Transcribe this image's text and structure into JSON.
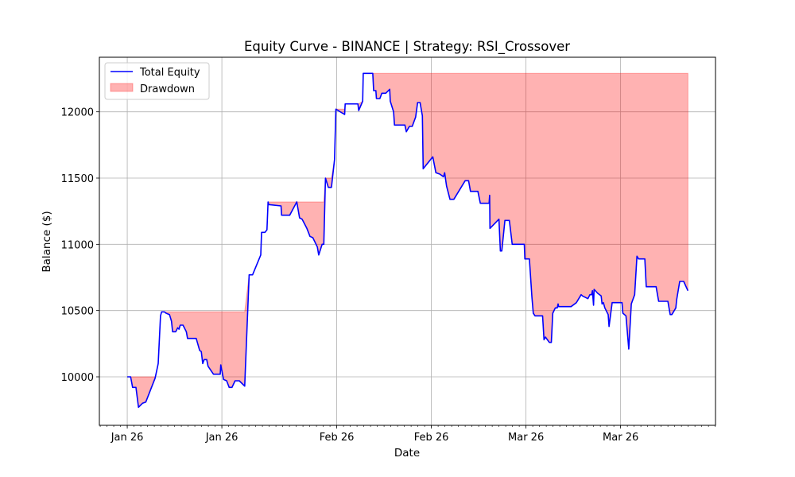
{
  "chart_data": {
    "type": "line",
    "title": "Equity Curve - BINANCE | Strategy: RSI_Crossover",
    "xlabel": "Date",
    "ylabel": "Balance ($)",
    "xlim": [
      "2025-12-27 21:00",
      "2026-03-29 01:00"
    ],
    "ylim": [
      9634,
      12412
    ],
    "grid": true,
    "legend_placement": "upper-left",
    "x_ticks": [
      {
        "date": "2026-01-01 00:00",
        "label": "Jan 26"
      },
      {
        "date": "2026-01-15 00:00",
        "label": "Jan 26"
      },
      {
        "date": "2026-02-01 00:00",
        "label": "Feb 26"
      },
      {
        "date": "2026-02-15 00:00",
        "label": "Feb 26"
      },
      {
        "date": "2026-03-01 00:00",
        "label": "Mar 26"
      },
      {
        "date": "2026-03-15 00:00",
        "label": "Mar 26"
      }
    ],
    "y_ticks": [
      10000,
      10500,
      11000,
      11500,
      12000
    ],
    "series": [
      {
        "name": "Total Equity",
        "kind": "line",
        "color": "#0000ff"
      },
      {
        "name": "Drawdown",
        "kind": "fill-between running peak and equity",
        "color": "#ff0000",
        "alpha": 0.3
      }
    ],
    "points": [
      [
        "2026-01-01 00:00",
        10000
      ],
      [
        "2026-01-01 12:00",
        10000
      ],
      [
        "2026-01-01 19:00",
        9920
      ],
      [
        "2026-01-02 07:00",
        9920
      ],
      [
        "2026-01-02 11:00",
        9850
      ],
      [
        "2026-01-02 16:00",
        9770
      ],
      [
        "2026-01-03 06:00",
        9800
      ],
      [
        "2026-01-03 18:00",
        9810
      ],
      [
        "2026-01-05 03:00",
        9990
      ],
      [
        "2026-01-05 08:00",
        10040
      ],
      [
        "2026-01-05 14:00",
        10100
      ],
      [
        "2026-01-05 22:00",
        10460
      ],
      [
        "2026-01-06 02:00",
        10490
      ],
      [
        "2026-01-06 12:00",
        10490
      ],
      [
        "2026-01-06 18:00",
        10480
      ],
      [
        "2026-01-07 06:00",
        10470
      ],
      [
        "2026-01-07 13:00",
        10420
      ],
      [
        "2026-01-07 17:00",
        10340
      ],
      [
        "2026-01-08 04:00",
        10340
      ],
      [
        "2026-01-08 11:00",
        10370
      ],
      [
        "2026-01-08 16:00",
        10360
      ],
      [
        "2026-01-08 20:00",
        10390
      ],
      [
        "2026-01-09 06:00",
        10390
      ],
      [
        "2026-01-09 18:00",
        10340
      ],
      [
        "2026-01-09 22:00",
        10290
      ],
      [
        "2026-01-11 05:00",
        10290
      ],
      [
        "2026-01-11 17:00",
        10200
      ],
      [
        "2026-01-11 23:00",
        10190
      ],
      [
        "2026-01-12 04:00",
        10100
      ],
      [
        "2026-01-12 09:00",
        10130
      ],
      [
        "2026-01-12 18:00",
        10130
      ],
      [
        "2026-01-12 23:00",
        10080
      ],
      [
        "2026-01-13 18:00",
        10020
      ],
      [
        "2026-01-14 18:00",
        10020
      ],
      [
        "2026-01-14 20:00",
        10090
      ],
      [
        "2026-01-15 06:00",
        9980
      ],
      [
        "2026-01-15 17:00",
        9970
      ],
      [
        "2026-01-16 02:00",
        9920
      ],
      [
        "2026-01-16 12:00",
        9920
      ],
      [
        "2026-01-16 23:00",
        9970
      ],
      [
        "2026-01-17 14:00",
        9970
      ],
      [
        "2026-01-18 09:00",
        9930
      ],
      [
        "2026-01-19 01:00",
        10770
      ],
      [
        "2026-01-19 13:00",
        10770
      ],
      [
        "2026-01-20 18:00",
        10920
      ],
      [
        "2026-01-20 21:00",
        11090
      ],
      [
        "2026-01-21 09:00",
        11090
      ],
      [
        "2026-01-21 16:00",
        11110
      ],
      [
        "2026-01-21 20:00",
        11320
      ],
      [
        "2026-01-21 22:00",
        11300
      ],
      [
        "2026-01-23 18:00",
        11290
      ],
      [
        "2026-01-23 20:00",
        11220
      ],
      [
        "2026-01-25 01:00",
        11220
      ],
      [
        "2026-01-26 02:00",
        11320
      ],
      [
        "2026-01-26 12:00",
        11200
      ],
      [
        "2026-01-26 21:00",
        11190
      ],
      [
        "2026-01-27 14:00",
        11120
      ],
      [
        "2026-01-28 01:00",
        11060
      ],
      [
        "2026-01-28 11:00",
        11050
      ],
      [
        "2026-01-29 03:00",
        10980
      ],
      [
        "2026-01-29 08:00",
        10920
      ],
      [
        "2026-01-29 20:00",
        11000
      ],
      [
        "2026-01-30 02:00",
        11000
      ],
      [
        "2026-01-30 08:00",
        11500
      ],
      [
        "2026-01-30 18:00",
        11430
      ],
      [
        "2026-01-31 05:00",
        11430
      ],
      [
        "2026-01-31 16:00",
        11640
      ],
      [
        "2026-01-31 21:00",
        12020
      ],
      [
        "2026-02-02 04:00",
        11980
      ],
      [
        "2026-02-02 06:00",
        12060
      ],
      [
        "2026-02-04 03:00",
        12060
      ],
      [
        "2026-02-04 06:00",
        12010
      ],
      [
        "2026-02-04 20:00",
        12080
      ],
      [
        "2026-02-04 22:00",
        12290
      ],
      [
        "2026-02-06 08:00",
        12290
      ],
      [
        "2026-02-06 11:00",
        12160
      ],
      [
        "2026-02-06 19:00",
        12160
      ],
      [
        "2026-02-06 21:00",
        12100
      ],
      [
        "2026-02-07 09:00",
        12100
      ],
      [
        "2026-02-07 16:00",
        12140
      ],
      [
        "2026-02-08 06:00",
        12140
      ],
      [
        "2026-02-08 20:00",
        12170
      ],
      [
        "2026-02-08 22:00",
        12080
      ],
      [
        "2026-02-09 10:00",
        12000
      ],
      [
        "2026-02-09 13:00",
        11900
      ],
      [
        "2026-02-11 02:00",
        11900
      ],
      [
        "2026-02-11 07:00",
        11850
      ],
      [
        "2026-02-11 18:00",
        11890
      ],
      [
        "2026-02-12 04:00",
        11890
      ],
      [
        "2026-02-12 16:00",
        11960
      ],
      [
        "2026-02-12 23:00",
        12070
      ],
      [
        "2026-02-13 08:00",
        12070
      ],
      [
        "2026-02-13 16:00",
        11970
      ],
      [
        "2026-02-13 19:00",
        11570
      ],
      [
        "2026-02-15 05:00",
        11660
      ],
      [
        "2026-02-15 16:00",
        11540
      ],
      [
        "2026-02-16 06:00",
        11530
      ],
      [
        "2026-02-16 19:00",
        11510
      ],
      [
        "2026-02-16 23:00",
        11540
      ],
      [
        "2026-02-17 06:00",
        11440
      ],
      [
        "2026-02-17 18:00",
        11340
      ],
      [
        "2026-02-18 08:00",
        11340
      ],
      [
        "2026-02-20 00:00",
        11480
      ],
      [
        "2026-02-20 12:00",
        11480
      ],
      [
        "2026-02-20 19:00",
        11400
      ],
      [
        "2026-02-21 21:00",
        11400
      ],
      [
        "2026-02-22 06:00",
        11310
      ],
      [
        "2026-02-23 13:00",
        11310
      ],
      [
        "2026-02-23 15:00",
        11370
      ],
      [
        "2026-02-23 16:00",
        11120
      ],
      [
        "2026-02-25 00:00",
        11190
      ],
      [
        "2026-02-25 05:00",
        10950
      ],
      [
        "2026-02-25 10:00",
        10950
      ],
      [
        "2026-02-25 21:00",
        11180
      ],
      [
        "2026-02-26 13:00",
        11180
      ],
      [
        "2026-02-26 23:00",
        11000
      ],
      [
        "2026-02-28 18:00",
        11000
      ],
      [
        "2026-02-28 20:00",
        10890
      ],
      [
        "2026-03-01 12:00",
        10890
      ],
      [
        "2026-03-01 21:00",
        10600
      ],
      [
        "2026-03-02 02:00",
        10480
      ],
      [
        "2026-03-02 08:00",
        10460
      ],
      [
        "2026-03-03 11:00",
        10460
      ],
      [
        "2026-03-03 16:00",
        10280
      ],
      [
        "2026-03-03 21:00",
        10300
      ],
      [
        "2026-03-04 11:00",
        10260
      ],
      [
        "2026-03-04 18:00",
        10260
      ],
      [
        "2026-03-04 23:00",
        10480
      ],
      [
        "2026-03-05 08:00",
        10520
      ],
      [
        "2026-03-05 15:00",
        10520
      ],
      [
        "2026-03-05 18:00",
        10550
      ],
      [
        "2026-03-05 20:00",
        10530
      ],
      [
        "2026-03-07 16:00",
        10530
      ],
      [
        "2026-03-08 11:00",
        10560
      ],
      [
        "2026-03-09 04:00",
        10620
      ],
      [
        "2026-03-09 09:00",
        10610
      ],
      [
        "2026-03-10 04:00",
        10590
      ],
      [
        "2026-03-10 11:00",
        10620
      ],
      [
        "2026-03-10 17:00",
        10620
      ],
      [
        "2026-03-10 20:00",
        10650
      ],
      [
        "2026-03-11 00:00",
        10540
      ],
      [
        "2026-03-11 02:00",
        10660
      ],
      [
        "2026-03-11 15:00",
        10630
      ],
      [
        "2026-03-12 03:00",
        10610
      ],
      [
        "2026-03-12 06:00",
        10550
      ],
      [
        "2026-03-12 11:00",
        10560
      ],
      [
        "2026-03-12 16:00",
        10520
      ],
      [
        "2026-03-13 04:00",
        10470
      ],
      [
        "2026-03-13 07:00",
        10380
      ],
      [
        "2026-03-13 18:00",
        10560
      ],
      [
        "2026-03-15 05:00",
        10560
      ],
      [
        "2026-03-15 08:00",
        10480
      ],
      [
        "2026-03-15 19:00",
        10460
      ],
      [
        "2026-03-16 05:00",
        10210
      ],
      [
        "2026-03-16 14:00",
        10550
      ],
      [
        "2026-03-17 02:00",
        10620
      ],
      [
        "2026-03-17 10:00",
        10910
      ],
      [
        "2026-03-17 16:00",
        10890
      ],
      [
        "2026-03-18 14:00",
        10890
      ],
      [
        "2026-03-18 19:00",
        10680
      ],
      [
        "2026-03-20 06:00",
        10680
      ],
      [
        "2026-03-20 15:00",
        10570
      ],
      [
        "2026-03-22 00:00",
        10570
      ],
      [
        "2026-03-22 08:00",
        10470
      ],
      [
        "2026-03-22 14:00",
        10470
      ],
      [
        "2026-03-23 04:00",
        10520
      ],
      [
        "2026-03-23 07:00",
        10580
      ],
      [
        "2026-03-23 18:00",
        10720
      ],
      [
        "2026-03-24 08:00",
        10720
      ],
      [
        "2026-03-24 23:00",
        10650
      ]
    ]
  }
}
